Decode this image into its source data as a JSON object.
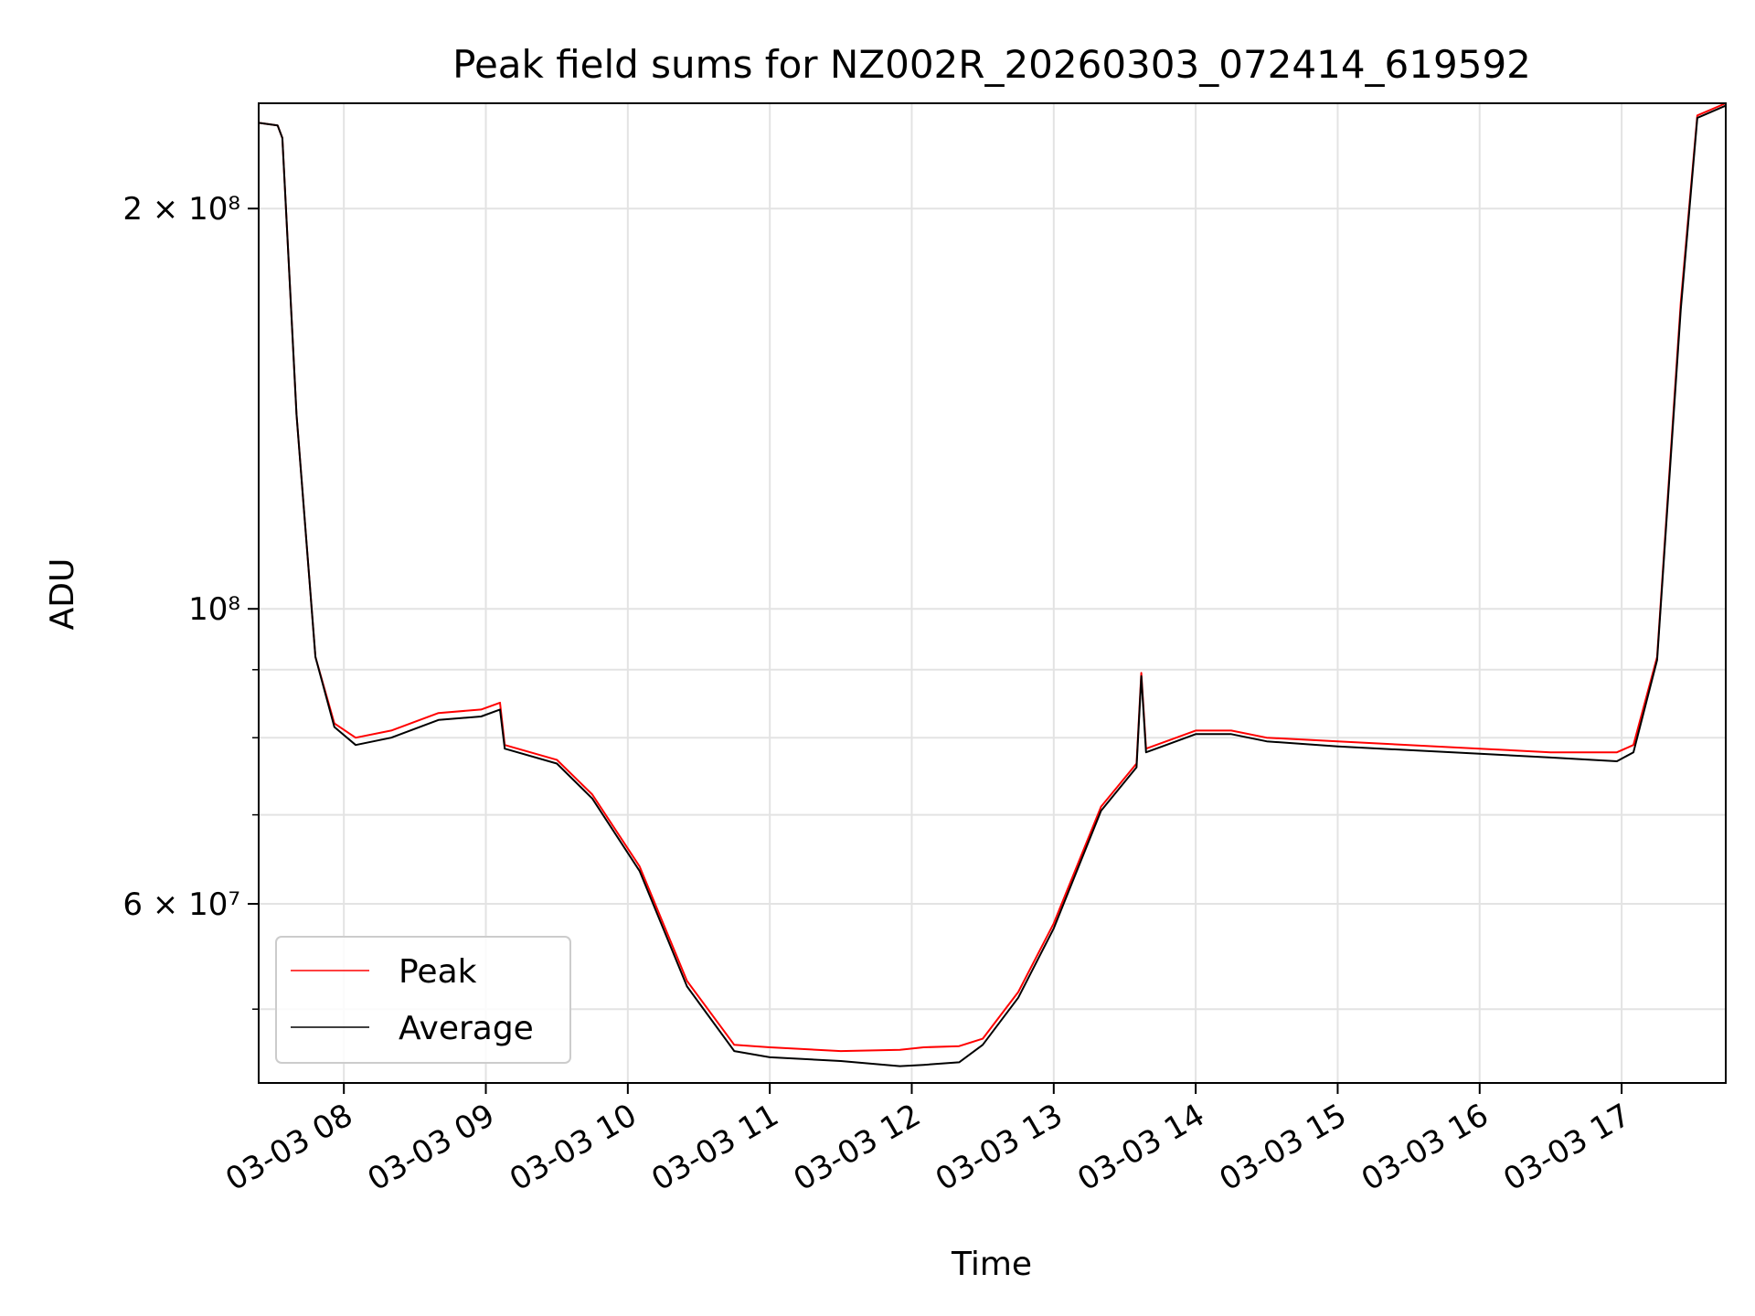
{
  "chart_data": {
    "type": "line",
    "title": "Peak field sums for NZ002R_20260303_072414_619592",
    "xlabel": "Time",
    "ylabel": "ADU",
    "yscale": "log",
    "xlim": [
      "2026-03-03 07:24",
      "2026-03-03 17:44"
    ],
    "ylim": [
      44000000,
      240000000
    ],
    "grid": true,
    "legend_placement": "lower-left",
    "x_ticks": [
      "2026-03-03 08:00",
      "2026-03-03 09:00",
      "2026-03-03 10:00",
      "2026-03-03 11:00",
      "2026-03-03 12:00",
      "2026-03-03 13:00",
      "2026-03-03 14:00",
      "2026-03-03 15:00",
      "2026-03-03 16:00",
      "2026-03-03 17:00"
    ],
    "x_tick_labels": [
      "03-03 08",
      "03-03 09",
      "03-03 10",
      "03-03 11",
      "03-03 12",
      "03-03 13",
      "03-03 14",
      "03-03 15",
      "03-03 16",
      "03-03 17"
    ],
    "y_ticks": [
      {
        "value": 200000000,
        "label": "2 × 10⁸"
      },
      {
        "value": 100000000,
        "label": "10⁸"
      },
      {
        "value": 60000000,
        "label": "6 × 10⁷"
      }
    ],
    "y_minor_ticks": [
      50000000,
      70000000,
      80000000,
      90000000
    ],
    "series": [
      {
        "name": "Peak",
        "color": "#ff0000",
        "x": [
          "2026-03-03 07:24",
          "2026-03-03 07:32",
          "2026-03-03 07:34",
          "2026-03-03 07:40",
          "2026-03-03 07:48",
          "2026-03-03 07:56",
          "2026-03-03 08:05",
          "2026-03-03 08:20",
          "2026-03-03 08:40",
          "2026-03-03 08:58",
          "2026-03-03 09:06",
          "2026-03-03 09:08",
          "2026-03-03 09:30",
          "2026-03-03 09:45",
          "2026-03-03 10:05",
          "2026-03-03 10:25",
          "2026-03-03 10:45",
          "2026-03-03 11:00",
          "2026-03-03 11:30",
          "2026-03-03 11:55",
          "2026-03-03 12:05",
          "2026-03-03 12:20",
          "2026-03-03 12:30",
          "2026-03-03 12:45",
          "2026-03-03 13:00",
          "2026-03-03 13:20",
          "2026-03-03 13:35",
          "2026-03-03 13:37",
          "2026-03-03 13:39",
          "2026-03-03 14:00",
          "2026-03-03 14:15",
          "2026-03-03 14:30",
          "2026-03-03 15:00",
          "2026-03-03 15:30",
          "2026-03-03 16:00",
          "2026-03-03 16:30",
          "2026-03-03 16:58",
          "2026-03-03 17:05",
          "2026-03-03 17:15",
          "2026-03-03 17:25",
          "2026-03-03 17:32",
          "2026-03-03 17:44"
        ],
        "y": [
          232000000,
          231000000,
          226000000,
          140000000,
          92000000,
          82000000,
          80000000,
          81000000,
          83500000,
          84000000,
          85000000,
          79000000,
          77000000,
          72500000,
          64000000,
          52500000,
          47000000,
          46800000,
          46500000,
          46600000,
          46800000,
          46900000,
          47500000,
          51500000,
          58000000,
          71000000,
          76500000,
          89500000,
          78500000,
          81000000,
          81000000,
          80000000,
          79500000,
          79000000,
          78500000,
          78000000,
          78000000,
          79000000,
          92000000,
          170000000,
          235000000,
          240000000
        ]
      },
      {
        "name": "Average",
        "color": "#000000",
        "x": [
          "2026-03-03 07:24",
          "2026-03-03 07:32",
          "2026-03-03 07:34",
          "2026-03-03 07:40",
          "2026-03-03 07:48",
          "2026-03-03 07:56",
          "2026-03-03 08:05",
          "2026-03-03 08:20",
          "2026-03-03 08:40",
          "2026-03-03 08:58",
          "2026-03-03 09:06",
          "2026-03-03 09:08",
          "2026-03-03 09:30",
          "2026-03-03 09:45",
          "2026-03-03 10:05",
          "2026-03-03 10:25",
          "2026-03-03 10:45",
          "2026-03-03 11:00",
          "2026-03-03 11:30",
          "2026-03-03 11:55",
          "2026-03-03 12:05",
          "2026-03-03 12:20",
          "2026-03-03 12:30",
          "2026-03-03 12:45",
          "2026-03-03 13:00",
          "2026-03-03 13:20",
          "2026-03-03 13:35",
          "2026-03-03 13:37",
          "2026-03-03 13:39",
          "2026-03-03 14:00",
          "2026-03-03 14:15",
          "2026-03-03 14:30",
          "2026-03-03 15:00",
          "2026-03-03 15:30",
          "2026-03-03 16:00",
          "2026-03-03 16:30",
          "2026-03-03 16:58",
          "2026-03-03 17:05",
          "2026-03-03 17:15",
          "2026-03-03 17:25",
          "2026-03-03 17:32",
          "2026-03-03 17:44"
        ],
        "y": [
          232000000,
          231000000,
          226000000,
          140000000,
          92000000,
          81500000,
          79000000,
          80000000,
          82500000,
          83000000,
          84000000,
          78500000,
          76500000,
          72000000,
          63500000,
          52000000,
          46500000,
          46000000,
          45700000,
          45300000,
          45400000,
          45600000,
          47000000,
          51000000,
          57500000,
          70500000,
          76000000,
          89000000,
          78000000,
          80500000,
          80500000,
          79500000,
          78800000,
          78300000,
          77800000,
          77300000,
          76800000,
          78000000,
          91500000,
          168000000,
          234000000,
          239000000
        ]
      }
    ]
  }
}
